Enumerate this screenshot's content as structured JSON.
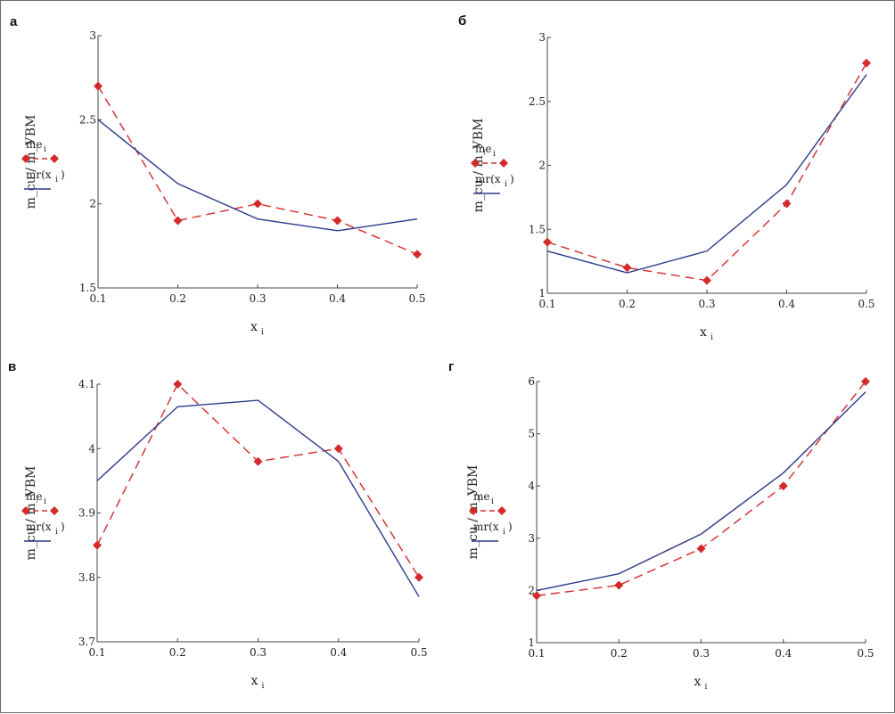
{
  "chart_data": [
    {
      "type": "line",
      "panel": "а",
      "ylabel": "m_cu / m_УВМ",
      "xlabel": "x",
      "xlabel_sub": "i",
      "xlim": [
        0.1,
        0.5
      ],
      "ylim": [
        1.5,
        3
      ],
      "xticks": [
        "0.1",
        "0.2",
        "0.3",
        "0.4",
        "0.5"
      ],
      "yticks": [
        "1.5",
        "2",
        "2.5",
        "3"
      ],
      "legend": [
        {
          "name": "me",
          "sub": "i",
          "suffix": ""
        },
        {
          "name": "mr(x",
          "sub": "i",
          "suffix": ")"
        }
      ],
      "series": [
        {
          "name": "me",
          "style": "dashed-diamond",
          "color": "#d42a2a",
          "x": [
            0.1,
            0.2,
            0.3,
            0.4,
            0.5
          ],
          "y": [
            2.7,
            1.9,
            2.0,
            1.9,
            1.7
          ]
        },
        {
          "name": "mr",
          "style": "solid",
          "color": "#2b3a8c",
          "x": [
            0.1,
            0.2,
            0.3,
            0.4,
            0.5
          ],
          "y": [
            2.5,
            2.12,
            1.91,
            1.84,
            1.91
          ]
        }
      ]
    },
    {
      "type": "line",
      "panel": "б",
      "ylabel": "m_cu / m_УВМ",
      "xlabel": "x",
      "xlabel_sub": "i",
      "xlim": [
        0.1,
        0.5
      ],
      "ylim": [
        1,
        3
      ],
      "xticks": [
        "0.1",
        "0.2",
        "0.3",
        "0.4",
        "0.5"
      ],
      "yticks": [
        "1",
        "1.5",
        "2",
        "2.5",
        "3"
      ],
      "legend": [
        {
          "name": "me",
          "sub": "i",
          "suffix": ""
        },
        {
          "name": "mr(x",
          "sub": "i",
          "suffix": ")"
        }
      ],
      "series": [
        {
          "name": "me",
          "style": "dashed-diamond",
          "color": "#d42a2a",
          "x": [
            0.1,
            0.2,
            0.3,
            0.4,
            0.5
          ],
          "y": [
            1.4,
            1.2,
            1.1,
            1.7,
            2.8
          ]
        },
        {
          "name": "mr",
          "style": "solid",
          "color": "#2b3a8c",
          "x": [
            0.1,
            0.2,
            0.3,
            0.4,
            0.5
          ],
          "y": [
            1.33,
            1.16,
            1.33,
            1.85,
            2.71
          ]
        }
      ]
    },
    {
      "type": "line",
      "panel": "в",
      "ylabel": "m_cu / m_УВМ",
      "xlabel": "x",
      "xlabel_sub": "i",
      "xlim": [
        0.1,
        0.5
      ],
      "ylim": [
        3.7,
        4.1
      ],
      "xticks": [
        "0.1",
        "0.2",
        "0.3",
        "0.4",
        "0.5"
      ],
      "yticks": [
        "3.7",
        "3.8",
        "3.9",
        "4",
        "4.1"
      ],
      "legend": [
        {
          "name": "me",
          "sub": "i",
          "suffix": ""
        },
        {
          "name": "mr(x",
          "sub": "i",
          "suffix": ")"
        }
      ],
      "series": [
        {
          "name": "me",
          "style": "dashed-diamond",
          "color": "#d42a2a",
          "x": [
            0.1,
            0.2,
            0.3,
            0.4,
            0.5
          ],
          "y": [
            3.85,
            4.1,
            3.98,
            4.0,
            3.8
          ]
        },
        {
          "name": "mr",
          "style": "solid",
          "color": "#2b3a8c",
          "x": [
            0.1,
            0.2,
            0.3,
            0.4,
            0.5
          ],
          "y": [
            3.95,
            4.065,
            4.075,
            3.98,
            3.77
          ]
        }
      ]
    },
    {
      "type": "line",
      "panel": "г",
      "ylabel": "m_cu / m_УВМ",
      "xlabel": "x",
      "xlabel_sub": "i",
      "xlim": [
        0.1,
        0.5
      ],
      "ylim": [
        1,
        6
      ],
      "xticks": [
        "0.1",
        "0.2",
        "0.3",
        "0.4",
        "0.5"
      ],
      "yticks": [
        "1",
        "2",
        "3",
        "4",
        "5",
        "6"
      ],
      "legend": [
        {
          "name": "me",
          "sub": "i",
          "suffix": ""
        },
        {
          "name": "mr(x",
          "sub": "i",
          "suffix": ")"
        }
      ],
      "series": [
        {
          "name": "me",
          "style": "dashed-diamond",
          "color": "#d42a2a",
          "x": [
            0.1,
            0.2,
            0.3,
            0.4,
            0.5
          ],
          "y": [
            1.9,
            2.1,
            2.8,
            4.0,
            6.0
          ]
        },
        {
          "name": "mr",
          "style": "solid",
          "color": "#2b3a8c",
          "x": [
            0.1,
            0.2,
            0.3,
            0.4,
            0.5
          ],
          "y": [
            2.0,
            2.32,
            3.08,
            4.25,
            5.8
          ]
        }
      ]
    }
  ]
}
